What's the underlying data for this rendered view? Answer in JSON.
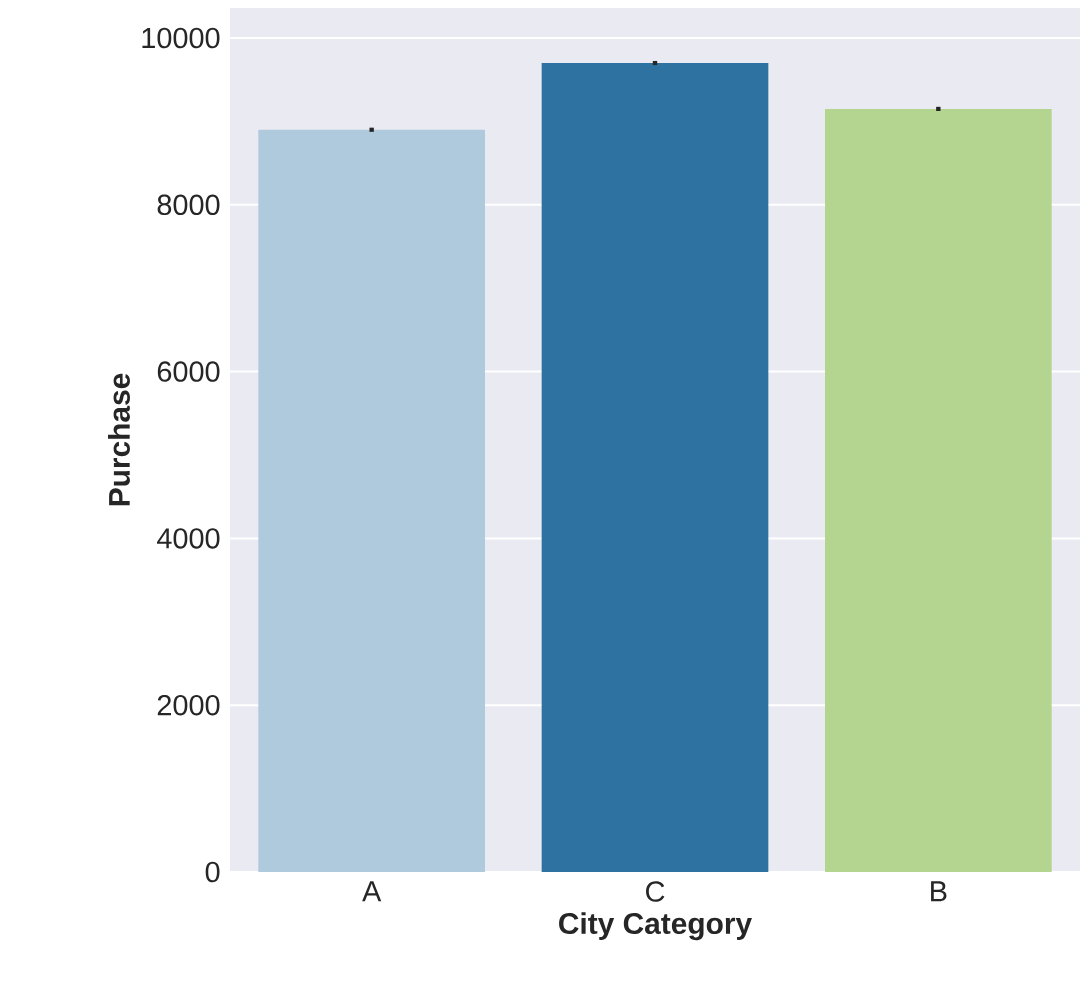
{
  "chart_data": {
    "type": "bar",
    "xlabel": "City Category",
    "ylabel": "Purchase",
    "categories": [
      "A",
      "C",
      "B"
    ],
    "values": [
      8900,
      9700,
      9150
    ],
    "colors": [
      "#afcadc",
      "#2e72a2",
      "#b4d590"
    ],
    "errors": [
      25,
      25,
      25
    ],
    "ylim": [
      0,
      10360
    ],
    "yticks": [
      0,
      2000,
      4000,
      6000,
      8000,
      10000
    ],
    "grid": "y"
  }
}
